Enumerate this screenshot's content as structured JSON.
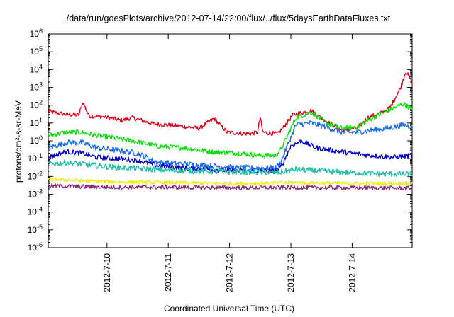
{
  "chart_data": {
    "type": "line",
    "title": "/data/run/goesPlots/archive/2012-07-14/22:00/flux/../flux/5daysEarthDataFluxes.txt",
    "xlabel": "Coordinated Universal Time (UTC)",
    "ylabel": "protons/cm²-s-sr-MeV",
    "yscale": "log",
    "ylim": [
      1e-06,
      1000000.0
    ],
    "xlim": [
      "2012-07-09 01:00",
      "2012-07-14 23:30"
    ],
    "x_ticks": [
      "2012-7-10",
      "2012-7-11",
      "2012-7-12",
      "2012-7-13",
      "2012-7-14"
    ],
    "y_ticks": [
      {
        "value": 1e-06,
        "base": "10",
        "exp": "-6"
      },
      {
        "value": 1e-05,
        "base": "10",
        "exp": "-5"
      },
      {
        "value": 0.0001,
        "base": "10",
        "exp": "-4"
      },
      {
        "value": 0.001,
        "base": "10",
        "exp": "-3"
      },
      {
        "value": 0.01,
        "base": "10",
        "exp": "-2"
      },
      {
        "value": 0.1,
        "base": "10",
        "exp": "-1"
      },
      {
        "value": 1,
        "base": "10",
        "exp": "0"
      },
      {
        "value": 10,
        "base": "10",
        "exp": "1"
      },
      {
        "value": 100,
        "base": "10",
        "exp": "2"
      },
      {
        "value": 1000,
        "base": "10",
        "exp": "3"
      },
      {
        "value": 10000,
        "base": "10",
        "exp": "4"
      },
      {
        "value": 100000,
        "base": "10",
        "exp": "5"
      },
      {
        "value": 1000000,
        "base": "10",
        "exp": "6"
      }
    ],
    "grid": false,
    "legend": "none",
    "series": [
      {
        "color": "#e0001b",
        "x": [
          "2012-07-09 01:00",
          "2012-07-09 08:00",
          "2012-07-09 13:00",
          "2012-07-09 14:30",
          "2012-07-09 17:00",
          "2012-07-09 23:00",
          "2012-07-10 06:00",
          "2012-07-10 10:00",
          "2012-07-10 18:00",
          "2012-07-11 04:00",
          "2012-07-11 12:00",
          "2012-07-11 18:00",
          "2012-07-11 23:00",
          "2012-07-12 08:00",
          "2012-07-12 11:00",
          "2012-07-12 12:00",
          "2012-07-12 13:00",
          "2012-07-12 18:00",
          "2012-07-12 19:00",
          "2012-07-13 01:00",
          "2012-07-13 08:00",
          "2012-07-13 14:00",
          "2012-07-13 20:00",
          "2012-07-14 02:00",
          "2012-07-14 06:00",
          "2012-07-14 12:00",
          "2012-07-14 15:00",
          "2012-07-14 19:00",
          "2012-07-14 21:00",
          "2012-07-14 23:30"
        ],
        "y": [
          45,
          30,
          28,
          150,
          25,
          22,
          14,
          20,
          9,
          7,
          5,
          18,
          3,
          2.5,
          3,
          22,
          3,
          2.5,
          2.5,
          30,
          50,
          12,
          4,
          5,
          20,
          40,
          80,
          1000,
          8000,
          2000
        ]
      },
      {
        "color": "#00e000",
        "x": [
          "2012-07-09 01:00",
          "2012-07-09 08:00",
          "2012-07-09 14:00",
          "2012-07-09 20:00",
          "2012-07-10 02:00",
          "2012-07-10 10:00",
          "2012-07-10 20:00",
          "2012-07-11 06:00",
          "2012-07-11 16:00",
          "2012-07-12 04:00",
          "2012-07-12 12:00",
          "2012-07-12 18:00",
          "2012-07-12 20:00",
          "2012-07-13 02:00",
          "2012-07-13 08:00",
          "2012-07-13 14:00",
          "2012-07-13 20:00",
          "2012-07-14 02:00",
          "2012-07-14 08:00",
          "2012-07-14 14:00",
          "2012-07-14 20:00",
          "2012-07-14 23:30"
        ],
        "y": [
          2,
          3,
          3,
          2,
          1.5,
          1,
          0.5,
          0.4,
          0.25,
          0.2,
          0.15,
          0.15,
          0.3,
          20,
          40,
          10,
          5,
          6,
          20,
          50,
          120,
          60
        ]
      },
      {
        "color": "#1a6ee8",
        "x": [
          "2012-07-09 01:00",
          "2012-07-09 08:00",
          "2012-07-09 14:00",
          "2012-07-09 20:00",
          "2012-07-10 04:00",
          "2012-07-10 12:00",
          "2012-07-10 20:00",
          "2012-07-11 06:00",
          "2012-07-11 16:00",
          "2012-07-12 04:00",
          "2012-07-12 12:00",
          "2012-07-12 18:00",
          "2012-07-12 20:00",
          "2012-07-13 02:00",
          "2012-07-13 08:00",
          "2012-07-13 14:00",
          "2012-07-13 20:00",
          "2012-07-14 02:00",
          "2012-07-14 08:00",
          "2012-07-14 14:00",
          "2012-07-14 20:00",
          "2012-07-14 23:30"
        ],
        "y": [
          0.4,
          0.8,
          0.8,
          0.4,
          0.3,
          0.2,
          0.06,
          0.05,
          0.04,
          0.03,
          0.03,
          0.03,
          0.06,
          8,
          10,
          6,
          3,
          3,
          4,
          5,
          8,
          6
        ]
      },
      {
        "color": "#0000c8",
        "x": [
          "2012-07-09 01:00",
          "2012-07-09 08:00",
          "2012-07-09 14:00",
          "2012-07-09 20:00",
          "2012-07-10 04:00",
          "2012-07-10 12:00",
          "2012-07-10 20:00",
          "2012-07-11 06:00",
          "2012-07-11 16:00",
          "2012-07-12 04:00",
          "2012-07-12 12:00",
          "2012-07-12 18:00",
          "2012-07-12 20:00",
          "2012-07-13 00:00",
          "2012-07-13 04:00",
          "2012-07-13 10:00",
          "2012-07-13 16:00",
          "2012-07-14 00:00",
          "2012-07-14 08:00",
          "2012-07-14 16:00",
          "2012-07-14 23:30"
        ],
        "y": [
          0.12,
          0.25,
          0.2,
          0.12,
          0.1,
          0.08,
          0.04,
          0.03,
          0.025,
          0.02,
          0.02,
          0.02,
          0.03,
          0.5,
          1,
          0.4,
          0.3,
          0.2,
          0.15,
          0.12,
          0.15
        ]
      },
      {
        "color": "#20c0a8",
        "x": [
          "2012-07-09 01:00",
          "2012-07-09 08:00",
          "2012-07-09 14:00",
          "2012-07-10 00:00",
          "2012-07-10 12:00",
          "2012-07-11 00:00",
          "2012-07-11 12:00",
          "2012-07-12 00:00",
          "2012-07-12 12:00",
          "2012-07-12 20:00",
          "2012-07-13 02:00",
          "2012-07-13 12:00",
          "2012-07-14 00:00",
          "2012-07-14 12:00",
          "2012-07-14 23:30"
        ],
        "y": [
          0.05,
          0.06,
          0.05,
          0.035,
          0.028,
          0.022,
          0.02,
          0.018,
          0.017,
          0.017,
          0.025,
          0.02,
          0.016,
          0.014,
          0.013
        ]
      },
      {
        "color": "#f0f000",
        "x": [
          "2012-07-09 01:00",
          "2012-07-10 00:00",
          "2012-07-11 00:00",
          "2012-07-12 00:00",
          "2012-07-13 00:00",
          "2012-07-14 00:00",
          "2012-07-14 23:30"
        ],
        "y": [
          0.007,
          0.005,
          0.0045,
          0.004,
          0.0045,
          0.004,
          0.0042
        ]
      },
      {
        "color": "#8c2a7a",
        "x": [
          "2012-07-09 01:00",
          "2012-07-10 00:00",
          "2012-07-11 00:00",
          "2012-07-12 00:00",
          "2012-07-13 00:00",
          "2012-07-14 00:00",
          "2012-07-14 23:30"
        ],
        "y": [
          0.003,
          0.0025,
          0.0025,
          0.0023,
          0.0024,
          0.0023,
          0.0022
        ]
      }
    ]
  }
}
